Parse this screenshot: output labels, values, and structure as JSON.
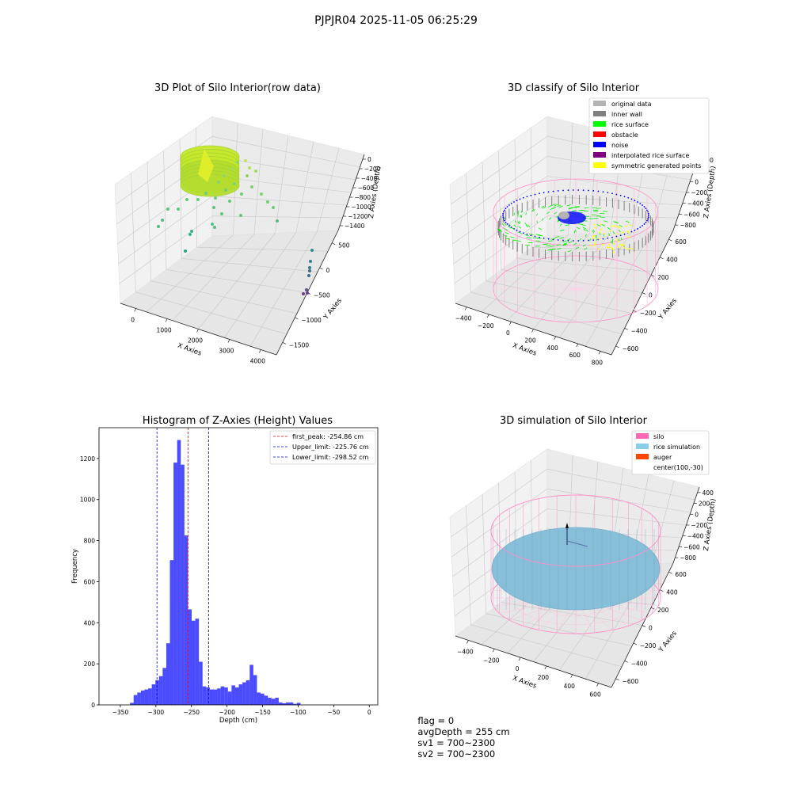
{
  "figure": {
    "title": "PJPJR04 2025-11-05 06:25:29",
    "status": {
      "flag": "flag = 0",
      "avg_depth": "avgDepth = 255 cm",
      "sv1": "sv1 = 700~2300",
      "sv2": "sv2 = 700~2300"
    }
  },
  "raw_plot": {
    "title": "3D Plot of Silo Interior(row data)",
    "xlabel": "X Axies",
    "ylabel": "Y Axies",
    "zlabel": "Z Axies (Depth)",
    "x_ticks": [
      "0",
      "1000",
      "2000",
      "3000",
      "4000"
    ],
    "y_ticks": [
      "500",
      "0",
      "−500",
      "−1000",
      "−1500"
    ],
    "z_ticks": [
      "0",
      "−200",
      "−400",
      "−600",
      "−800",
      "−1000",
      "−1200",
      "−1400"
    ]
  },
  "classify_plot": {
    "title": "3D classify of Silo Interior",
    "xlabel": "X Axies",
    "ylabel": "Y Axies",
    "zlabel": "Z Axies (Depth)",
    "x_ticks": [
      "−400",
      "−200",
      "0",
      "200",
      "400",
      "600",
      "800"
    ],
    "y_ticks": [
      "600",
      "400",
      "200",
      "0",
      "−200",
      "−400",
      "−600"
    ],
    "z_ticks": [
      "400",
      "200",
      "0",
      "−200",
      "−400",
      "−600",
      "−800"
    ],
    "legend": [
      {
        "label": "original data",
        "color": "#b3b3b3"
      },
      {
        "label": "inner wall",
        "color": "#808080"
      },
      {
        "label": "rice surface",
        "color": "#00ff00"
      },
      {
        "label": "obstacle",
        "color": "#ff0000"
      },
      {
        "label": "noise",
        "color": "#0000ff"
      },
      {
        "label": "interpolated rice surface",
        "color": "#800080"
      },
      {
        "label": "symmetric generated points",
        "color": "#ffff00"
      }
    ]
  },
  "simulation_plot": {
    "title": "3D simulation of Silo Interior",
    "xlabel": "X Axies",
    "ylabel": "Y Axies",
    "zlabel": "Z Axies (Depth)",
    "x_ticks": [
      "−400",
      "−200",
      "0",
      "200",
      "400",
      "600"
    ],
    "y_ticks": [
      "600",
      "400",
      "200",
      "0",
      "−200",
      "−400",
      "−600"
    ],
    "z_ticks": [
      "400",
      "200",
      "0",
      "−200",
      "−400",
      "−600",
      "−800"
    ],
    "legend": [
      {
        "label": "silo",
        "color": "#ff69b4"
      },
      {
        "label": "rice simulation",
        "color": "#87ceeb"
      },
      {
        "label": "auger",
        "color": "#ff4500"
      },
      {
        "label": "center(100,-30)",
        "color": ""
      }
    ]
  },
  "chart_data": {
    "type": "bar",
    "title": "Histogram of Z-Axies (Height) Values",
    "xlabel": "Depth (cm)",
    "ylabel": "Frequency",
    "xlim": [
      -380,
      12
    ],
    "ylim": [
      0,
      1350
    ],
    "x_ticks": [
      -350,
      -300,
      -250,
      -200,
      -150,
      -100,
      -50,
      0
    ],
    "x_tick_labels": [
      "−350",
      "−300",
      "−250",
      "−200",
      "−150",
      "−100",
      "−50",
      "0"
    ],
    "y_ticks": [
      0,
      200,
      400,
      600,
      800,
      1000,
      1200
    ],
    "bar_color": "#0000ff",
    "bins": [
      {
        "x0": -336.4,
        "x1": -331.3,
        "value": 10
      },
      {
        "x0": -331.3,
        "x1": -326.2,
        "value": 48
      },
      {
        "x0": -326.2,
        "x1": -321.1,
        "value": 60
      },
      {
        "x0": -321.1,
        "x1": -316.0,
        "value": 70
      },
      {
        "x0": -316.0,
        "x1": -310.9,
        "value": 75
      },
      {
        "x0": -310.9,
        "x1": -305.8,
        "value": 80
      },
      {
        "x0": -305.8,
        "x1": -300.7,
        "value": 100
      },
      {
        "x0": -300.7,
        "x1": -295.6,
        "value": 120
      },
      {
        "x0": -295.6,
        "x1": -290.5,
        "value": 140
      },
      {
        "x0": -290.5,
        "x1": -285.4,
        "value": 180
      },
      {
        "x0": -285.4,
        "x1": -280.3,
        "value": 300
      },
      {
        "x0": -280.3,
        "x1": -275.2,
        "value": 705
      },
      {
        "x0": -275.2,
        "x1": -270.1,
        "value": 1180
      },
      {
        "x0": -270.1,
        "x1": -265.0,
        "value": 1290
      },
      {
        "x0": -265.0,
        "x1": -259.9,
        "value": 1170
      },
      {
        "x0": -259.9,
        "x1": -254.8,
        "value": 825
      },
      {
        "x0": -254.8,
        "x1": -249.7,
        "value": 465
      },
      {
        "x0": -249.7,
        "x1": -244.6,
        "value": 410
      },
      {
        "x0": -244.6,
        "x1": -239.5,
        "value": 420
      },
      {
        "x0": -239.5,
        "x1": -234.4,
        "value": 210
      },
      {
        "x0": -234.4,
        "x1": -229.3,
        "value": 90
      },
      {
        "x0": -229.3,
        "x1": -224.2,
        "value": 85
      },
      {
        "x0": -224.2,
        "x1": -219.1,
        "value": 75
      },
      {
        "x0": -219.1,
        "x1": -214.0,
        "value": 75
      },
      {
        "x0": -214.0,
        "x1": -208.9,
        "value": 80
      },
      {
        "x0": -208.9,
        "x1": -203.8,
        "value": 90
      },
      {
        "x0": -203.8,
        "x1": -198.7,
        "value": 85
      },
      {
        "x0": -198.7,
        "x1": -193.6,
        "value": 65
      },
      {
        "x0": -193.6,
        "x1": -188.5,
        "value": 95
      },
      {
        "x0": -188.5,
        "x1": -183.4,
        "value": 85
      },
      {
        "x0": -183.4,
        "x1": -178.3,
        "value": 100
      },
      {
        "x0": -178.3,
        "x1": -173.2,
        "value": 110
      },
      {
        "x0": -173.2,
        "x1": -168.1,
        "value": 120
      },
      {
        "x0": -168.1,
        "x1": -163.0,
        "value": 195
      },
      {
        "x0": -163.0,
        "x1": -157.9,
        "value": 145
      },
      {
        "x0": -157.9,
        "x1": -152.8,
        "value": 60
      },
      {
        "x0": -152.8,
        "x1": -147.7,
        "value": 55
      },
      {
        "x0": -147.7,
        "x1": -142.6,
        "value": 45
      },
      {
        "x0": -142.6,
        "x1": -137.5,
        "value": 35
      },
      {
        "x0": -137.5,
        "x1": -132.4,
        "value": 30
      },
      {
        "x0": -132.4,
        "x1": -127.3,
        "value": 35
      },
      {
        "x0": -127.3,
        "x1": -122.2,
        "value": 12
      },
      {
        "x0": -122.2,
        "x1": -117.1,
        "value": 8
      },
      {
        "x0": -117.1,
        "x1": -112.0,
        "value": 12
      },
      {
        "x0": -112.0,
        "x1": -106.9,
        "value": 12
      },
      {
        "x0": -106.9,
        "x1": -101.8,
        "value": 5
      },
      {
        "x0": -101.8,
        "x1": -96.7,
        "value": 10
      }
    ],
    "vlines": [
      {
        "x": -254.86,
        "color": "#ff0000",
        "label": "first_peak: -254.86 cm"
      },
      {
        "x": -225.76,
        "color": "#0000ff",
        "label": "Upper_limit: -225.76 cm"
      },
      {
        "x": -298.52,
        "color": "#0000ff",
        "label": "Lower_limit: -298.52 cm"
      }
    ],
    "legend_position": "top-right"
  }
}
